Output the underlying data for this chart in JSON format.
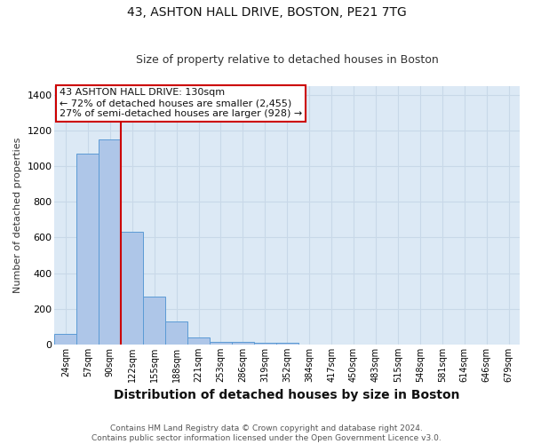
{
  "title_line1": "43, ASHTON HALL DRIVE, BOSTON, PE21 7TG",
  "title_line2": "Size of property relative to detached houses in Boston",
  "xlabel": "Distribution of detached houses by size in Boston",
  "ylabel": "Number of detached properties",
  "footnote": "Contains HM Land Registry data © Crown copyright and database right 2024.\nContains public sector information licensed under the Open Government Licence v3.0.",
  "bar_labels": [
    "24sqm",
    "57sqm",
    "90sqm",
    "122sqm",
    "155sqm",
    "188sqm",
    "221sqm",
    "253sqm",
    "286sqm",
    "319sqm",
    "352sqm",
    "384sqm",
    "417sqm",
    "450sqm",
    "483sqm",
    "515sqm",
    "548sqm",
    "581sqm",
    "614sqm",
    "646sqm",
    "679sqm"
  ],
  "bar_heights": [
    60,
    1070,
    1150,
    630,
    270,
    130,
    40,
    15,
    15,
    10,
    10,
    0,
    0,
    0,
    0,
    0,
    0,
    0,
    0,
    0,
    0
  ],
  "bar_color": "#aec6e8",
  "bar_edge_color": "#5b9bd5",
  "red_line_index": 3,
  "red_line_color": "#cc0000",
  "ylim": [
    0,
    1450
  ],
  "yticks": [
    0,
    200,
    400,
    600,
    800,
    1000,
    1200,
    1400
  ],
  "annotation_line1": "43 ASHTON HALL DRIVE: 130sqm",
  "annotation_line2": "← 72% of detached houses are smaller (2,455)",
  "annotation_line3": "27% of semi-detached houses are larger (928) →",
  "annotation_box_color": "#ffffff",
  "annotation_box_edge_color": "#cc0000",
  "grid_color": "#c8d8e8",
  "plot_background": "#dce9f5",
  "title1_fontsize": 10,
  "title2_fontsize": 9,
  "ylabel_fontsize": 8,
  "xlabel_fontsize": 10,
  "annot_fontsize": 8,
  "tick_fontsize": 7
}
